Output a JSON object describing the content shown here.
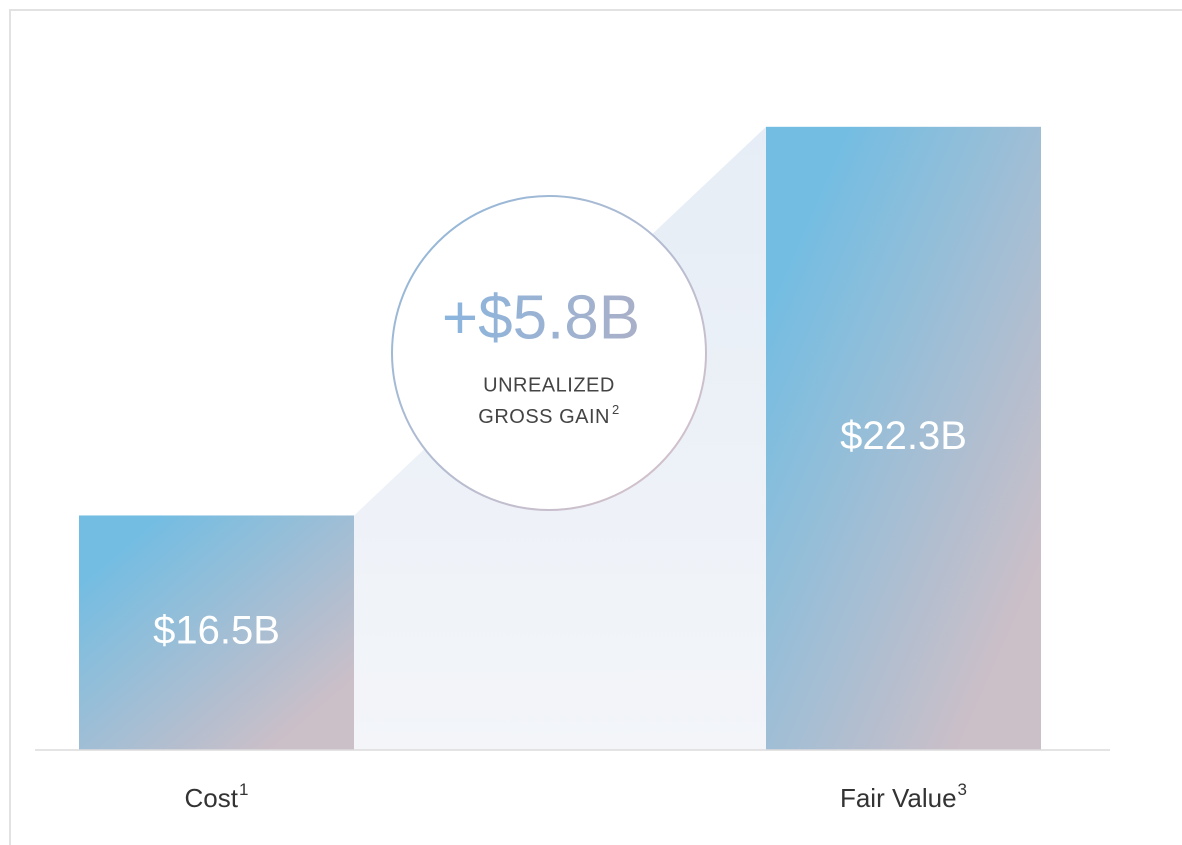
{
  "chart_data": {
    "type": "bar",
    "categories": [
      "Cost",
      "Fair Value"
    ],
    "category_notes": [
      "1",
      "3"
    ],
    "values": [
      16.5,
      22.3
    ],
    "value_labels": [
      "$16.5B",
      "$22.3B"
    ],
    "ylim": [
      13,
      22.7
    ],
    "annotation": {
      "value_label": "+$5.8B",
      "lines": [
        "UNREALIZED",
        "GROSS GAIN"
      ],
      "note": "2"
    }
  }
}
